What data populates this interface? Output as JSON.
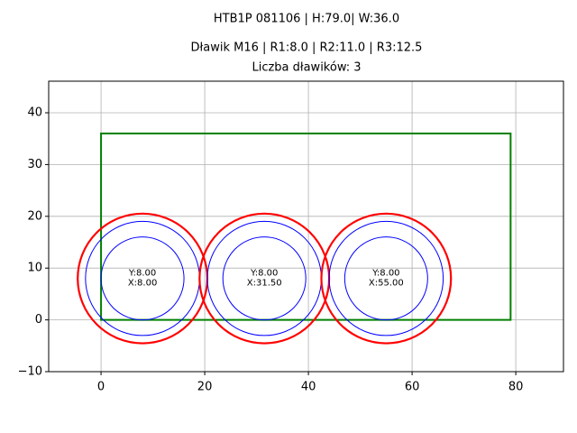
{
  "chart_data": {
    "type": "shapes",
    "titles": [
      "HTB1P 081106 | H:79.0| W:36.0",
      "Dławik M16 | R1:8.0 | R2:11.0 | R3:12.5",
      "Liczba dławików: 3"
    ],
    "rectangle": {
      "width": 79,
      "height": 36,
      "color": "green"
    },
    "radii": [
      8,
      11,
      12.5
    ],
    "radius_colors": [
      "blue",
      "blue",
      "red"
    ],
    "glands": [
      {
        "x": 8,
        "y": 8,
        "label_y": "Y:8.00",
        "label_x": "X:8.00"
      },
      {
        "x": 31.5,
        "y": 8,
        "label_y": "Y:8.00",
        "label_x": "X:31.50"
      },
      {
        "x": 55,
        "y": 8,
        "label_y": "Y:8.00",
        "label_x": "X:55.00"
      }
    ],
    "xlim": [
      -10.1,
      89.2
    ],
    "ylim": [
      -10,
      46.1
    ],
    "xticks": [
      0,
      20,
      40,
      60,
      80
    ],
    "yticks": [
      {
        "value": -10,
        "label": "−10"
      },
      0,
      10,
      20,
      30,
      40
    ],
    "grid": true
  }
}
